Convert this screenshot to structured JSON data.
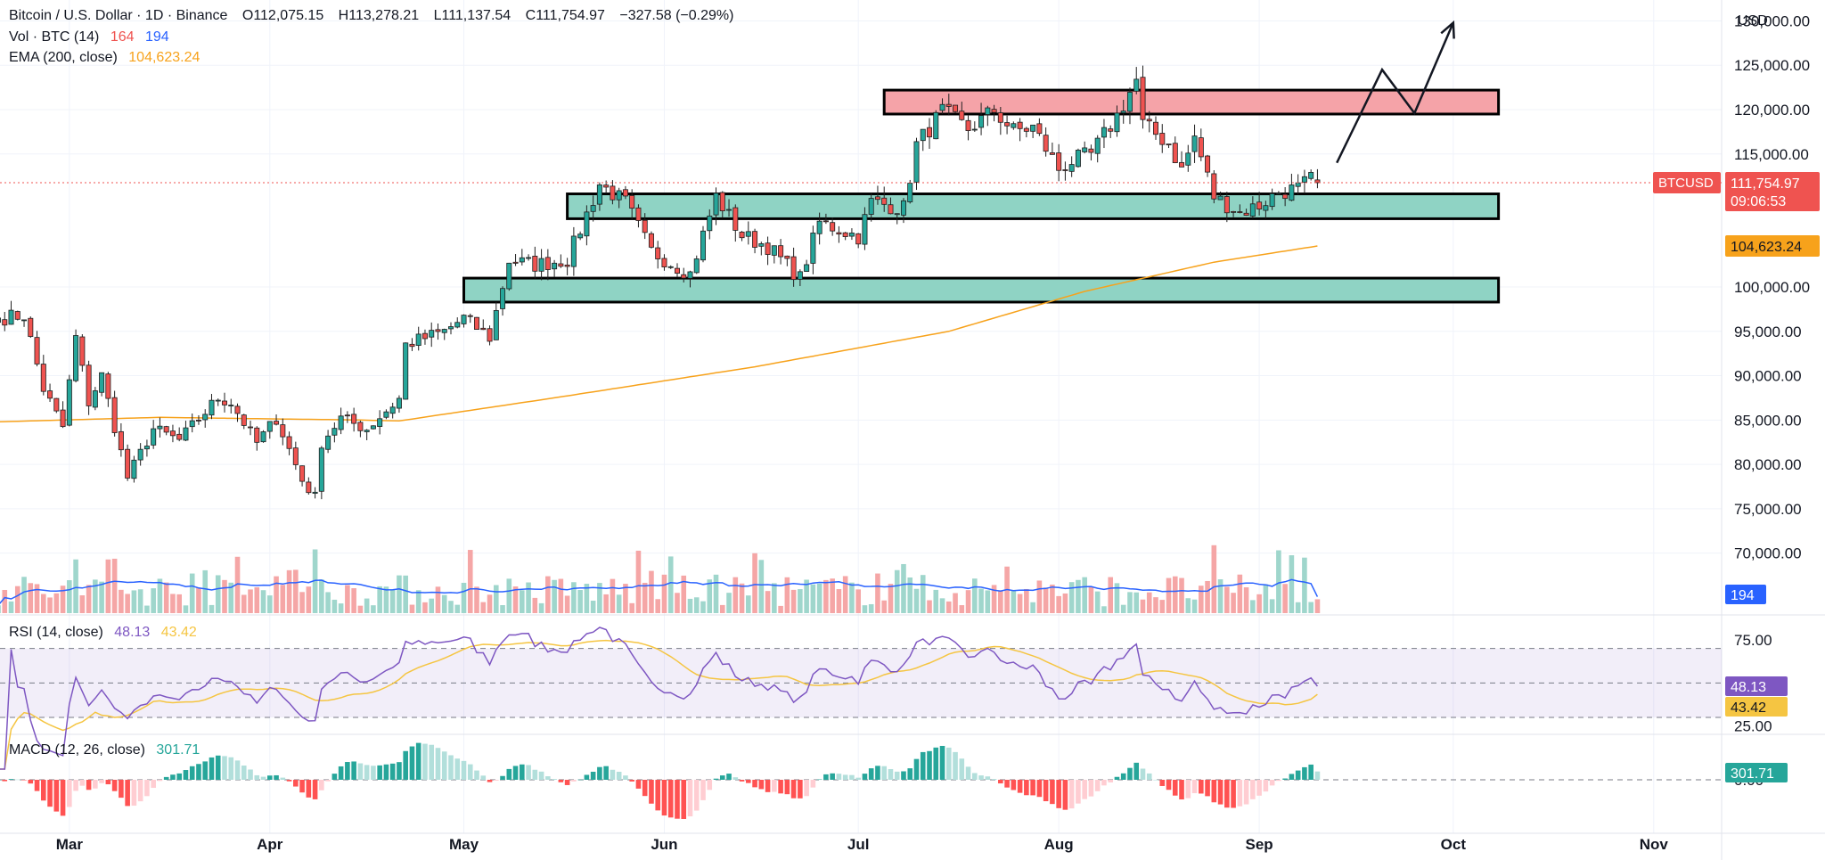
{
  "header": {
    "symbol": "Bitcoin / U.S. Dollar · 1D · Binance",
    "open": "O112,075.15",
    "high": "H113,278.21",
    "low": "L111,137.54",
    "close": "C111,754.97",
    "change": "−327.58 (−0.29%)"
  },
  "volume_legend": {
    "label": "Vol · BTC (14)",
    "v1": "164",
    "v2": "194"
  },
  "ema_legend": {
    "label": "EMA (200, close)",
    "value": "104,623.24"
  },
  "rsi_legend": {
    "label": "RSI (14, close)",
    "v1": "48.13",
    "v2": "43.42"
  },
  "macd_legend": {
    "label": "MACD (12, 26, close)",
    "value": "301.71"
  },
  "currency": "USD",
  "badges": {
    "symbol": "BTCUSD",
    "price": "111,754.97",
    "countdown": "09:06:53",
    "ema": "104,623.24",
    "volume": "194",
    "rsi": "48.13",
    "rsi_ma": "43.42",
    "macd": "301.71"
  },
  "colors": {
    "up": "#26a69a",
    "down": "#ef5350",
    "ema": "#f7a21b",
    "vol_ma": "#2962ff",
    "rsi": "#7e57c2",
    "rsi_ma": "#f5c542",
    "resistance_zone": "#f5a3a8",
    "support_zone": "#8fd3c4"
  },
  "chart_data": {
    "type": "candlestick",
    "x_start": "2025-02-18",
    "x_ticks": [
      "Mar",
      "Apr",
      "May",
      "Jun",
      "Jul",
      "Aug",
      "Sep",
      "Oct",
      "Nov"
    ],
    "x_tick_dates": [
      "2025-03-01",
      "2025-04-01",
      "2025-05-01",
      "2025-06-01",
      "2025-07-01",
      "2025-08-01",
      "2025-09-01",
      "2025-10-01",
      "2025-11-01"
    ],
    "price_ticks": [
      "130,000.00",
      "125,000.00",
      "120,000.00",
      "115,000.00",
      "100,000.00",
      "95,000.00",
      "90,000.00",
      "85,000.00",
      "80,000.00",
      "75,000.00",
      "70,000.00"
    ],
    "price_tick_values": [
      130000,
      125000,
      120000,
      115000,
      100000,
      95000,
      90000,
      85000,
      80000,
      75000,
      70000
    ],
    "rsi_ticks": [
      "75.00",
      "25.00"
    ],
    "rsi_tick_values": [
      75,
      25
    ],
    "macd_tick": "0.00",
    "anchors": [
      [
        "2025-02-18",
        96500
      ],
      [
        "2025-02-22",
        96800
      ],
      [
        "2025-02-25",
        88500
      ],
      [
        "2025-02-28",
        84200
      ],
      [
        "2025-03-02",
        94300
      ],
      [
        "2025-03-04",
        87000
      ],
      [
        "2025-03-06",
        90000
      ],
      [
        "2025-03-10",
        78500
      ],
      [
        "2025-03-14",
        84000
      ],
      [
        "2025-03-18",
        82700
      ],
      [
        "2025-03-24",
        87500
      ],
      [
        "2025-03-26",
        87000
      ],
      [
        "2025-03-30",
        82400
      ],
      [
        "2025-04-02",
        85200
      ],
      [
        "2025-04-06",
        78200
      ],
      [
        "2025-04-08",
        76300
      ],
      [
        "2025-04-09",
        82500
      ],
      [
        "2025-04-12",
        85200
      ],
      [
        "2025-04-16",
        84000
      ],
      [
        "2025-04-21",
        87400
      ],
      [
        "2025-04-22",
        93500
      ],
      [
        "2025-04-28",
        95000
      ],
      [
        "2025-05-01",
        96500
      ],
      [
        "2025-05-05",
        94300
      ],
      [
        "2025-05-08",
        103000
      ],
      [
        "2025-05-12",
        102500
      ],
      [
        "2025-05-17",
        103100
      ],
      [
        "2025-05-22",
        111600
      ],
      [
        "2025-05-26",
        109500
      ],
      [
        "2025-05-30",
        104000
      ],
      [
        "2025-06-05",
        101500
      ],
      [
        "2025-06-09",
        110200
      ],
      [
        "2025-06-13",
        105800
      ],
      [
        "2025-06-17",
        104600
      ],
      [
        "2025-06-22",
        101000
      ],
      [
        "2025-06-25",
        107300
      ],
      [
        "2025-07-01",
        105700
      ],
      [
        "2025-07-03",
        109600
      ],
      [
        "2025-07-08",
        108900
      ],
      [
        "2025-07-10",
        116000
      ],
      [
        "2025-07-14",
        119800
      ],
      [
        "2025-07-18",
        117800
      ],
      [
        "2025-07-22",
        119900
      ],
      [
        "2025-07-25",
        117600
      ],
      [
        "2025-07-28",
        118000
      ],
      [
        "2025-08-01",
        113300
      ],
      [
        "2025-08-03",
        114200
      ],
      [
        "2025-08-06",
        114900
      ],
      [
        "2025-08-10",
        119300
      ],
      [
        "2025-08-13",
        123300
      ],
      [
        "2025-08-14",
        118300
      ],
      [
        "2025-08-18",
        116200
      ],
      [
        "2025-08-20",
        113200
      ],
      [
        "2025-08-22",
        116900
      ],
      [
        "2025-08-25",
        110200
      ],
      [
        "2025-08-29",
        108400
      ],
      [
        "2025-09-01",
        109200
      ],
      [
        "2025-09-04",
        110700
      ],
      [
        "2025-09-07",
        111100
      ],
      [
        "2025-09-09",
        112100
      ],
      [
        "2025-09-10",
        111754.97
      ]
    ],
    "ema_anchors": [
      [
        "2025-02-18",
        84800
      ],
      [
        "2025-03-15",
        85300
      ],
      [
        "2025-04-15",
        85000
      ],
      [
        "2025-04-21",
        84900
      ],
      [
        "2025-05-15",
        87500
      ],
      [
        "2025-06-15",
        91000
      ],
      [
        "2025-07-15",
        95000
      ],
      [
        "2025-08-05",
        99500
      ],
      [
        "2025-08-25",
        102800
      ],
      [
        "2025-09-10",
        104623.24
      ]
    ],
    "zones": [
      {
        "type": "resistance",
        "from": "2025-07-05",
        "to": "2025-10-08",
        "low": 119500,
        "high": 122200
      },
      {
        "type": "support",
        "from": "2025-05-17",
        "to": "2025-10-08",
        "low": 107700,
        "high": 110500
      },
      {
        "type": "support",
        "from": "2025-05-01",
        "to": "2025-10-08",
        "low": 98300,
        "high": 101000
      }
    ],
    "projection": [
      [
        "2025-09-13",
        114000
      ],
      [
        "2025-09-20",
        124500
      ],
      [
        "2025-09-25",
        119600
      ],
      [
        "2025-10-01",
        129800
      ]
    ],
    "last_price": 111754.97,
    "last_volume": 164,
    "volume_ma_last": 194,
    "rsi_last": 48.13,
    "rsi_ma_last": 43.42,
    "macd_last": 301.71
  }
}
